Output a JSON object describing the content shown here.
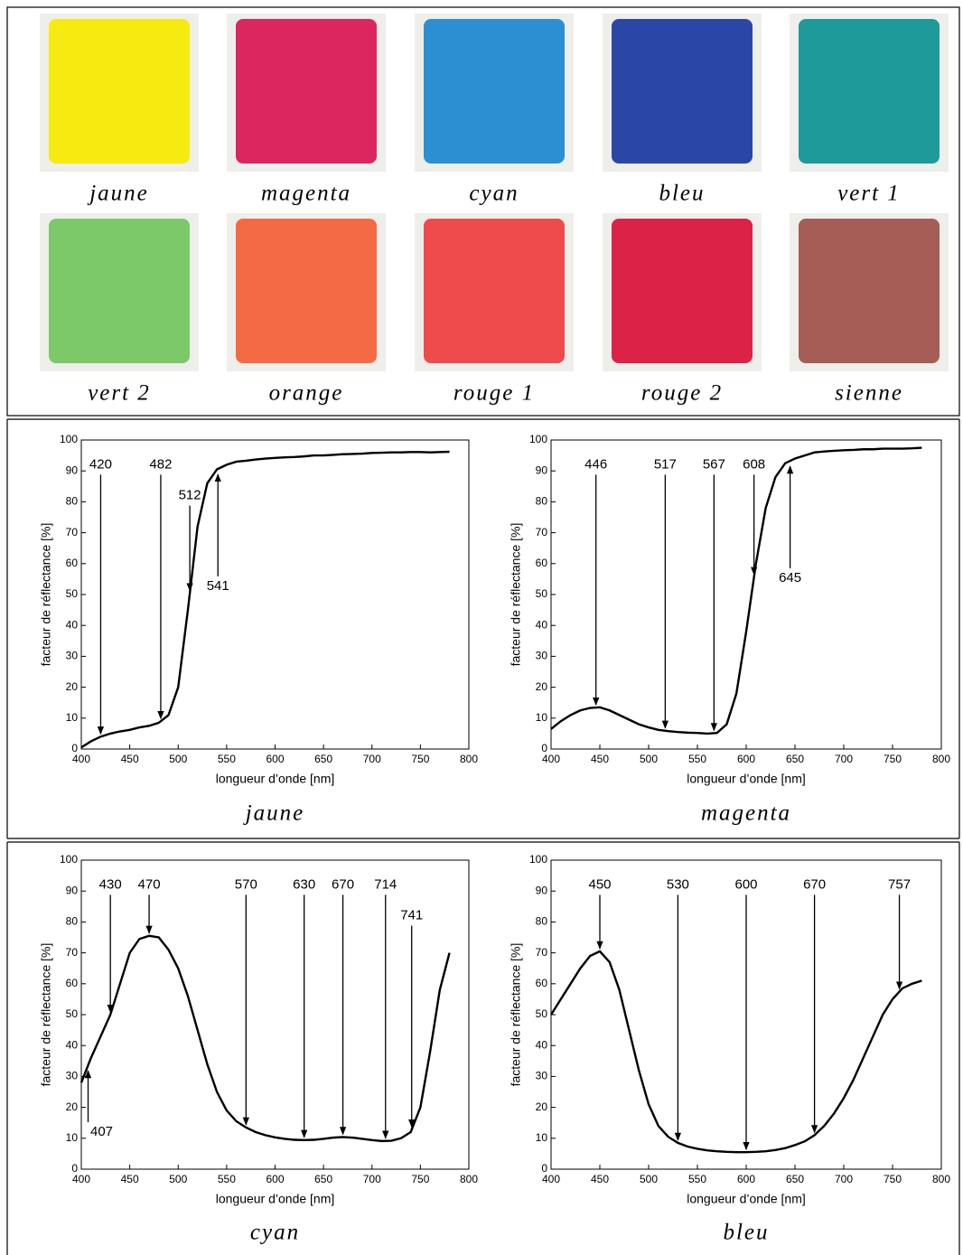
{
  "swatches": [
    {
      "label": "jaune",
      "color": "#f7ea10"
    },
    {
      "label": "magenta",
      "color": "#dc2660"
    },
    {
      "label": "cyan",
      "color": "#2c8fd2"
    },
    {
      "label": "bleu",
      "color": "#2a47a8"
    },
    {
      "label": "vert 1",
      "color": "#1f9a9a"
    },
    {
      "label": "vert 2",
      "color": "#7cc96a"
    },
    {
      "label": "orange",
      "color": "#f46a45"
    },
    {
      "label": "rouge 1",
      "color": "#ef4a4c"
    },
    {
      "label": "rouge 2",
      "color": "#dc2247"
    },
    {
      "label": "sienne",
      "color": "#a65d55"
    }
  ],
  "chart_data": [
    {
      "type": "line",
      "title": "jaune",
      "x_label": "longueur d’onde [nm]",
      "y_label": "facteur de réflectance [%]",
      "xlim": [
        400,
        800
      ],
      "ylim": [
        0,
        100
      ],
      "xticks": [
        400,
        450,
        500,
        550,
        600,
        650,
        700,
        750,
        800
      ],
      "yticks": [
        0,
        10,
        20,
        30,
        40,
        50,
        60,
        70,
        80,
        90,
        100
      ],
      "x": [
        400,
        410,
        420,
        430,
        440,
        450,
        460,
        470,
        480,
        490,
        500,
        510,
        520,
        530,
        540,
        550,
        560,
        570,
        580,
        590,
        600,
        610,
        620,
        630,
        640,
        650,
        660,
        670,
        680,
        690,
        700,
        710,
        720,
        730,
        740,
        750,
        760,
        770,
        780
      ],
      "series": [
        {
          "color": "#000000",
          "values": [
            0.5,
            2.5,
            4,
            5,
            5.7,
            6.2,
            7,
            7.5,
            8.5,
            11,
            20,
            45,
            72,
            86,
            90.5,
            92,
            93,
            93.3,
            93.7,
            94,
            94.2,
            94.4,
            94.5,
            94.7,
            95,
            95,
            95.2,
            95.4,
            95.5,
            95.6,
            95.8,
            95.9,
            96,
            96,
            96.1,
            96.1,
            96,
            96.1,
            96.2
          ]
        }
      ],
      "annotations": [
        {
          "x": 420,
          "side": "above"
        },
        {
          "x": 482,
          "side": "above"
        },
        {
          "x": 512,
          "side": "above"
        },
        {
          "x": 541,
          "side": "below"
        }
      ]
    },
    {
      "type": "line",
      "title": "magenta",
      "x_label": "longueur d’onde [nm]",
      "y_label": "facteur de réflectance [%]",
      "xlim": [
        400,
        800
      ],
      "ylim": [
        0,
        100
      ],
      "xticks": [
        400,
        450,
        500,
        550,
        600,
        650,
        700,
        750,
        800
      ],
      "yticks": [
        0,
        10,
        20,
        30,
        40,
        50,
        60,
        70,
        80,
        90,
        100
      ],
      "x": [
        400,
        410,
        420,
        430,
        440,
        450,
        460,
        470,
        480,
        490,
        500,
        510,
        520,
        530,
        540,
        550,
        560,
        570,
        580,
        590,
        600,
        610,
        620,
        630,
        640,
        650,
        660,
        670,
        680,
        690,
        700,
        710,
        720,
        730,
        740,
        750,
        760,
        770,
        780
      ],
      "series": [
        {
          "color": "#000000",
          "values": [
            6.5,
            9,
            11,
            12.5,
            13.3,
            13.5,
            12.5,
            11,
            9.5,
            8,
            7,
            6.2,
            5.8,
            5.5,
            5.3,
            5.2,
            5,
            5.2,
            8,
            18,
            38,
            60,
            78,
            88,
            92.5,
            94,
            95,
            96,
            96.3,
            96.5,
            96.7,
            96.8,
            97,
            97,
            97.2,
            97.2,
            97.2,
            97.3,
            97.5
          ]
        }
      ],
      "annotations": [
        {
          "x": 446,
          "side": "above"
        },
        {
          "x": 517,
          "side": "above"
        },
        {
          "x": 567,
          "side": "above"
        },
        {
          "x": 608,
          "side": "above"
        },
        {
          "x": 645,
          "side": "below"
        }
      ]
    },
    {
      "type": "line",
      "title": "cyan",
      "x_label": "longueur d’onde [nm]",
      "y_label": "facteur de réflectance [%]",
      "xlim": [
        400,
        800
      ],
      "ylim": [
        0,
        100
      ],
      "xticks": [
        400,
        450,
        500,
        550,
        600,
        650,
        700,
        750,
        800
      ],
      "yticks": [
        0,
        10,
        20,
        30,
        40,
        50,
        60,
        70,
        80,
        90,
        100
      ],
      "x": [
        400,
        410,
        420,
        430,
        440,
        450,
        460,
        470,
        480,
        490,
        500,
        510,
        520,
        530,
        540,
        550,
        560,
        570,
        580,
        590,
        600,
        610,
        620,
        630,
        640,
        650,
        660,
        670,
        680,
        690,
        700,
        710,
        720,
        730,
        740,
        750,
        760,
        770,
        780
      ],
      "series": [
        {
          "color": "#000000",
          "values": [
            28,
            36,
            43,
            50,
            60,
            70,
            74.5,
            75.5,
            75,
            71,
            65,
            56,
            45,
            34,
            25,
            19,
            15.5,
            13.5,
            12,
            11,
            10.3,
            9.8,
            9.5,
            9.4,
            9.5,
            9.8,
            10.2,
            10.4,
            10.2,
            9.8,
            9.4,
            9.1,
            9.2,
            10,
            12,
            20,
            38,
            58,
            70
          ]
        }
      ],
      "annotations": [
        {
          "x": 407,
          "side": "below"
        },
        {
          "x": 430,
          "side": "above"
        },
        {
          "x": 470,
          "side": "above"
        },
        {
          "x": 570,
          "side": "above"
        },
        {
          "x": 630,
          "side": "above"
        },
        {
          "x": 670,
          "side": "above"
        },
        {
          "x": 714,
          "side": "above"
        },
        {
          "x": 741,
          "side": "above"
        }
      ]
    },
    {
      "type": "line",
      "title": "bleu",
      "x_label": "longueur d’onde [nm]",
      "y_label": "facteur de réflectance [%]",
      "xlim": [
        400,
        800
      ],
      "ylim": [
        0,
        100
      ],
      "xticks": [
        400,
        450,
        500,
        550,
        600,
        650,
        700,
        750,
        800
      ],
      "yticks": [
        0,
        10,
        20,
        30,
        40,
        50,
        60,
        70,
        80,
        90,
        100
      ],
      "x": [
        400,
        410,
        420,
        430,
        440,
        450,
        460,
        470,
        480,
        490,
        500,
        510,
        520,
        530,
        540,
        550,
        560,
        570,
        580,
        590,
        600,
        610,
        620,
        630,
        640,
        650,
        660,
        670,
        680,
        690,
        700,
        710,
        720,
        730,
        740,
        750,
        760,
        770,
        780
      ],
      "series": [
        {
          "color": "#000000",
          "values": [
            50,
            55,
            60,
            65,
            69,
            70.5,
            67,
            58,
            45,
            32,
            21,
            14,
            10.5,
            8.5,
            7.3,
            6.6,
            6.1,
            5.8,
            5.6,
            5.5,
            5.5,
            5.6,
            5.8,
            6.2,
            6.8,
            7.8,
            9,
            11,
            14,
            18,
            23,
            29,
            36,
            43,
            50,
            55,
            58.5,
            60,
            61
          ]
        }
      ],
      "annotations": [
        {
          "x": 450,
          "side": "above"
        },
        {
          "x": 530,
          "side": "above"
        },
        {
          "x": 600,
          "side": "above"
        },
        {
          "x": 670,
          "side": "above"
        },
        {
          "x": 757,
          "side": "above"
        }
      ]
    }
  ]
}
